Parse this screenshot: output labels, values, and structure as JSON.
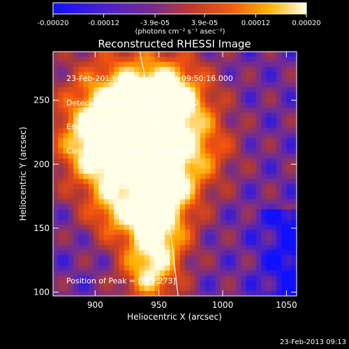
{
  "chart_data": {
    "type": "heatmap",
    "title": "Reconstructed RHESSI Image",
    "xlabel": "Heliocentric X (arcsec)",
    "ylabel": "Heliocentric Y (arcsec)",
    "xlim": [
      867,
      1058
    ],
    "ylim": [
      97,
      288
    ],
    "xticks": [
      900,
      950,
      1000,
      1050
    ],
    "yticks": [
      100,
      150,
      200,
      250
    ],
    "colorbar": {
      "min": -0.0002,
      "max": 0.0002,
      "ticks": [
        {
          "value": -0.0002,
          "label": "-0.00020"
        },
        {
          "value": -0.00012,
          "label": "-0.00012"
        },
        {
          "value": -3.9e-05,
          "label": "-3.9e-05"
        },
        {
          "value": 3.9e-05,
          "label": "3.9e-05"
        },
        {
          "value": 0.00012,
          "label": "0.00012"
        },
        {
          "value": 0.0002,
          "label": "0.00020"
        }
      ],
      "unit_label": "(photons cm⁻² s⁻¹ asec⁻²)",
      "colors": [
        "#1010ff",
        "#6a2aa0",
        "#b23a30",
        "#f05010",
        "#ffb000",
        "#ffffe8"
      ]
    },
    "annotations": [
      "23-Feb-2013 09:46:12.000 to 09:50:16.000",
      "Detectors: 3F 5F 6F 7F 8F 9F, All 0",
      "Energy Range: 12.0 - 25.0 keV",
      "Clean     Total counts: 4.34E+03"
    ],
    "peak_label": "Position of Peak = [979,273]",
    "limb_curve": [
      [
        935,
        288
      ],
      [
        945,
        240
      ],
      [
        953,
        190
      ],
      [
        960,
        140
      ],
      [
        965,
        97
      ]
    ],
    "grid": false
  },
  "footer_timestamp": "23-Feb-2013 09:13"
}
